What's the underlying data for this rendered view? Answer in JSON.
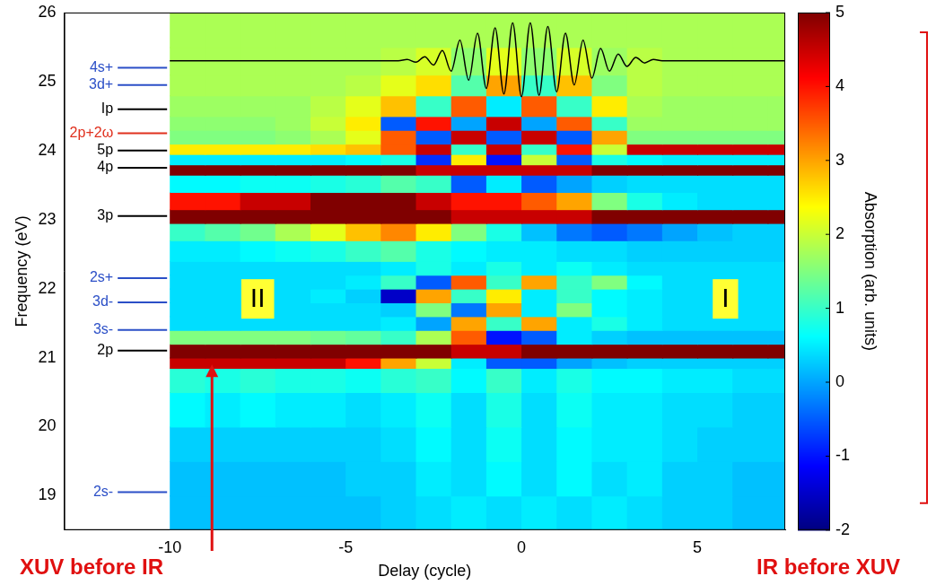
{
  "chart_data": {
    "type": "heatmap",
    "x_label": "Delay (cycle)",
    "y_label": "Frequency (eV)",
    "xlim": [
      -13,
      7.5
    ],
    "xticks": [
      -10,
      -5,
      0,
      5
    ],
    "ylim": [
      18.5,
      26
    ],
    "yticks": [
      19,
      20,
      21,
      22,
      23,
      24,
      25,
      26
    ],
    "grid": false,
    "x_edges": [
      -10,
      -9,
      -8,
      -7,
      -6,
      -5,
      -4,
      -3,
      -2,
      -1,
      0,
      1,
      2,
      3,
      4,
      5,
      6,
      7,
      7.5
    ],
    "y_edges": [
      18.5,
      19,
      19.5,
      20,
      20.5,
      20.85,
      21.0,
      21.2,
      21.4,
      21.6,
      21.8,
      22.0,
      22.2,
      22.4,
      22.7,
      22.95,
      23.15,
      23.4,
      23.65,
      23.8,
      23.95,
      24.1,
      24.3,
      24.5,
      24.8,
      25.1,
      25.5,
      26
    ],
    "cells": [
      [
        0.2,
        0.2,
        0.2,
        0.2,
        0.2,
        0.2,
        0.3,
        0.4,
        0.5,
        0.4,
        0.5,
        0.4,
        0.5,
        0.4,
        0.3,
        0.3,
        0.2,
        0.2
      ],
      [
        0.2,
        0.2,
        0.2,
        0.2,
        0.2,
        0.3,
        0.3,
        0.5,
        0.4,
        0.6,
        0.4,
        0.6,
        0.4,
        0.5,
        0.3,
        0.3,
        0.2,
        0.2
      ],
      [
        0.3,
        0.3,
        0.3,
        0.3,
        0.3,
        0.3,
        0.4,
        0.6,
        0.4,
        0.7,
        0.4,
        0.6,
        0.5,
        0.5,
        0.4,
        0.3,
        0.3,
        0.3
      ],
      [
        0.6,
        0.5,
        0.6,
        0.5,
        0.5,
        0.4,
        0.5,
        0.7,
        0.4,
        0.8,
        0.4,
        0.7,
        0.5,
        0.5,
        0.4,
        0.4,
        0.3,
        0.3
      ],
      [
        0.9,
        0.8,
        0.9,
        0.8,
        0.8,
        0.7,
        0.9,
        1.0,
        0.6,
        1.0,
        0.5,
        0.8,
        0.6,
        0.6,
        0.5,
        0.5,
        0.4,
        0.4
      ],
      [
        4.5,
        4.5,
        4.5,
        4.5,
        4.5,
        4.0,
        3.0,
        2.0,
        0.5,
        -0.5,
        -0.5,
        0.0,
        0.2,
        0.3,
        0.3,
        0.3,
        0.3,
        0.3
      ],
      [
        5,
        5,
        5,
        5,
        5,
        5,
        5,
        5,
        4.5,
        4.5,
        5,
        5,
        5,
        5,
        5,
        5,
        5,
        5
      ],
      [
        1.5,
        1.5,
        1.5,
        1.5,
        1.4,
        1.3,
        1.0,
        1.8,
        3.5,
        -1.0,
        -0.5,
        0.5,
        0.3,
        0.2,
        0.2,
        0.2,
        0.2,
        0.2
      ],
      [
        0.4,
        0.4,
        0.4,
        0.4,
        0.4,
        0.4,
        0.5,
        0.0,
        3.0,
        1.0,
        3.0,
        0.5,
        0.8,
        0.5,
        0.4,
        0.4,
        0.4,
        0.4
      ],
      [
        0.4,
        0.4,
        0.4,
        0.4,
        0.4,
        0.4,
        0.3,
        1.5,
        -0.3,
        3.0,
        0.5,
        1.5,
        0.6,
        0.5,
        0.4,
        0.4,
        0.4,
        0.4
      ],
      [
        0.4,
        0.4,
        0.4,
        0.4,
        0.5,
        0.3,
        -1.5,
        3.0,
        1.0,
        2.5,
        0.5,
        1.0,
        0.6,
        0.5,
        0.4,
        0.4,
        0.4,
        0.4
      ],
      [
        0.4,
        0.4,
        0.4,
        0.4,
        0.4,
        0.5,
        1.0,
        -0.5,
        3.5,
        1.0,
        3.0,
        1.0,
        1.5,
        0.6,
        0.4,
        0.4,
        0.4,
        0.4
      ],
      [
        0.4,
        0.4,
        0.4,
        0.4,
        0.4,
        0.4,
        0.5,
        0.8,
        0.5,
        0.8,
        0.5,
        0.7,
        0.5,
        0.4,
        0.4,
        0.4,
        0.4,
        0.4
      ],
      [
        0.5,
        0.5,
        0.6,
        0.7,
        0.8,
        1.0,
        1.2,
        0.8,
        0.6,
        0.5,
        0.5,
        0.4,
        0.4,
        0.3,
        0.3,
        0.3,
        0.3,
        0.3
      ],
      [
        1.0,
        1.2,
        1.4,
        1.8,
        2.2,
        2.8,
        3.2,
        2.5,
        1.5,
        0.8,
        0.2,
        -0.3,
        -0.5,
        -0.3,
        0.0,
        0.2,
        0.3,
        0.3
      ],
      [
        5,
        5,
        5,
        5,
        5,
        5,
        5,
        5,
        4.5,
        4.5,
        4.5,
        4.5,
        5,
        5,
        5,
        5,
        5,
        5
      ],
      [
        4.0,
        4.0,
        4.5,
        4.5,
        5,
        5,
        5,
        4.5,
        4.0,
        4.0,
        3.5,
        3.0,
        1.5,
        0.8,
        0.5,
        0.4,
        0.4,
        0.4
      ],
      [
        0.6,
        0.6,
        0.7,
        0.7,
        0.8,
        0.9,
        1.2,
        1.0,
        -0.5,
        0.5,
        -0.5,
        0.0,
        0.3,
        0.4,
        0.4,
        0.4,
        0.4,
        0.4
      ],
      [
        5,
        5,
        5,
        5,
        5,
        5,
        5,
        4.5,
        4.5,
        4.5,
        4.5,
        4.5,
        5,
        5,
        5,
        5,
        5,
        5
      ],
      [
        0.5,
        0.5,
        0.5,
        0.5,
        0.5,
        0.6,
        0.8,
        -0.8,
        2.5,
        -1.0,
        2.0,
        -0.5,
        0.8,
        0.6,
        0.5,
        0.5,
        0.5,
        0.5
      ],
      [
        2.5,
        2.5,
        2.5,
        2.5,
        2.6,
        2.8,
        3.5,
        4.5,
        1.0,
        4.5,
        1.0,
        4.0,
        2.0,
        4.5,
        4.5,
        4.5,
        4.5,
        4.5
      ],
      [
        1.5,
        1.5,
        1.5,
        1.6,
        1.8,
        2.2,
        3.5,
        -0.5,
        4.5,
        -0.5,
        4.5,
        -0.5,
        3.0,
        1.5,
        1.5,
        1.5,
        1.5,
        1.5
      ],
      [
        1.6,
        1.6,
        1.6,
        1.7,
        2.0,
        2.5,
        -0.5,
        4.0,
        0.0,
        4.5,
        0.0,
        3.5,
        1.0,
        1.7,
        1.7,
        1.7,
        1.7,
        1.7
      ],
      [
        1.7,
        1.7,
        1.7,
        1.7,
        1.9,
        2.2,
        2.8,
        1.0,
        3.5,
        0.5,
        3.5,
        1.0,
        2.5,
        1.8,
        1.7,
        1.7,
        1.7,
        1.7
      ],
      [
        1.8,
        1.8,
        1.8,
        1.8,
        1.8,
        1.9,
        2.2,
        2.6,
        1.2,
        3.0,
        1.0,
        2.8,
        1.5,
        1.9,
        1.8,
        1.8,
        1.8,
        1.8
      ],
      [
        1.8,
        1.8,
        1.8,
        1.8,
        1.8,
        1.8,
        1.9,
        2.1,
        1.6,
        2.2,
        1.6,
        2.1,
        1.7,
        1.9,
        1.8,
        1.8,
        1.8,
        1.8
      ],
      [
        1.8,
        1.8,
        1.8,
        1.8,
        1.8,
        1.8,
        1.8,
        1.8,
        1.8,
        1.8,
        1.8,
        1.8,
        1.8,
        1.8,
        1.8,
        1.8,
        1.8,
        1.8
      ]
    ],
    "colorbar": {
      "label": "Absorption (arb. units)",
      "lim": [
        -2,
        5
      ],
      "ticks": [
        -2,
        -1,
        0,
        1,
        2,
        3,
        4,
        5
      ]
    },
    "series": [
      {
        "type": "line",
        "color": "#000000",
        "x": [
          -10,
          -3.5,
          -3.25,
          -3,
          -2.75,
          -2.5,
          -2.25,
          -2,
          -1.75,
          -1.5,
          -1.25,
          -1,
          -0.75,
          -0.5,
          -0.25,
          0,
          0.25,
          0.5,
          0.75,
          1,
          1.25,
          1.5,
          1.75,
          2,
          2.25,
          2.5,
          2.75,
          3,
          3.25,
          3.5,
          3.75,
          4,
          7.5
        ],
        "values": [
          25.3,
          25.3,
          25.32,
          25.28,
          25.36,
          25.24,
          25.45,
          25.15,
          25.6,
          25.02,
          25.7,
          24.9,
          25.78,
          24.82,
          25.85,
          24.78,
          25.85,
          24.8,
          25.8,
          24.85,
          25.7,
          24.95,
          25.6,
          25.05,
          25.48,
          25.15,
          25.4,
          25.22,
          25.35,
          25.27,
          25.32,
          25.3,
          25.3
        ]
      }
    ],
    "levels": [
      {
        "label": "4s+",
        "value": 25.2,
        "color": "#2b4fc7"
      },
      {
        "label": "3d+",
        "value": 24.95,
        "color": "#2b4fc7"
      },
      {
        "label": "Ip",
        "value": 24.6,
        "color": "#000000"
      },
      {
        "label": "2p+2ω",
        "value": 24.25,
        "color": "#e0301e"
      },
      {
        "label": "5p",
        "value": 24.0,
        "color": "#000000"
      },
      {
        "label": "4p",
        "value": 23.75,
        "color": "#000000"
      },
      {
        "label": "3p",
        "value": 23.05,
        "color": "#000000"
      },
      {
        "label": "2s+",
        "value": 22.15,
        "color": "#2b4fc7"
      },
      {
        "label": "3d-",
        "value": 21.8,
        "color": "#2b4fc7"
      },
      {
        "label": "3s-",
        "value": 21.4,
        "color": "#2b4fc7"
      },
      {
        "label": "2p",
        "value": 21.1,
        "color": "#000000"
      },
      {
        "label": "2s-",
        "value": 19.05,
        "color": "#2b4fc7"
      }
    ],
    "annotations": [
      {
        "text": "II",
        "x": -7.5,
        "y": 21.85
      },
      {
        "text": "I",
        "x": 5.8,
        "y": 21.85
      }
    ],
    "side_labels": {
      "left": "XUV before IR",
      "right": "IR before XUV"
    },
    "arrows": [
      {
        "from_label": "XUV before IR",
        "x": -8.8,
        "y": 20.9
      }
    ]
  }
}
